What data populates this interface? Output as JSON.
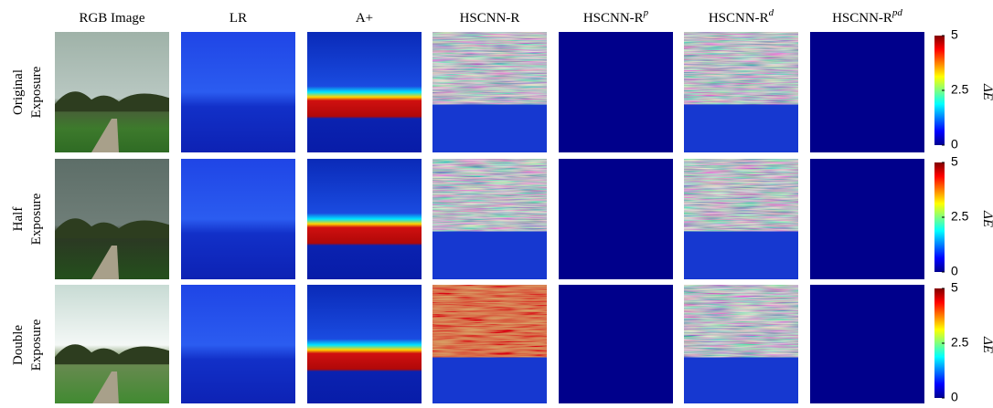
{
  "columns": [
    {
      "base": "RGB Image"
    },
    {
      "base": "LR"
    },
    {
      "base": "A+"
    },
    {
      "base": "HSCNN-R"
    },
    {
      "base": "HSCNN-R",
      "sup": "p"
    },
    {
      "base": "HSCNN-R",
      "sup": "d"
    },
    {
      "base": "HSCNN-R",
      "sup": "pd"
    }
  ],
  "rows": [
    {
      "label": [
        "Original",
        "Exposure"
      ]
    },
    {
      "label": [
        "Half",
        "Exposure"
      ]
    },
    {
      "label": [
        "Double",
        "Exposure"
      ]
    }
  ],
  "colorbar": {
    "label": "ΔE",
    "lim": [
      0,
      5
    ],
    "ticks": [
      5,
      2.5,
      0
    ]
  }
}
